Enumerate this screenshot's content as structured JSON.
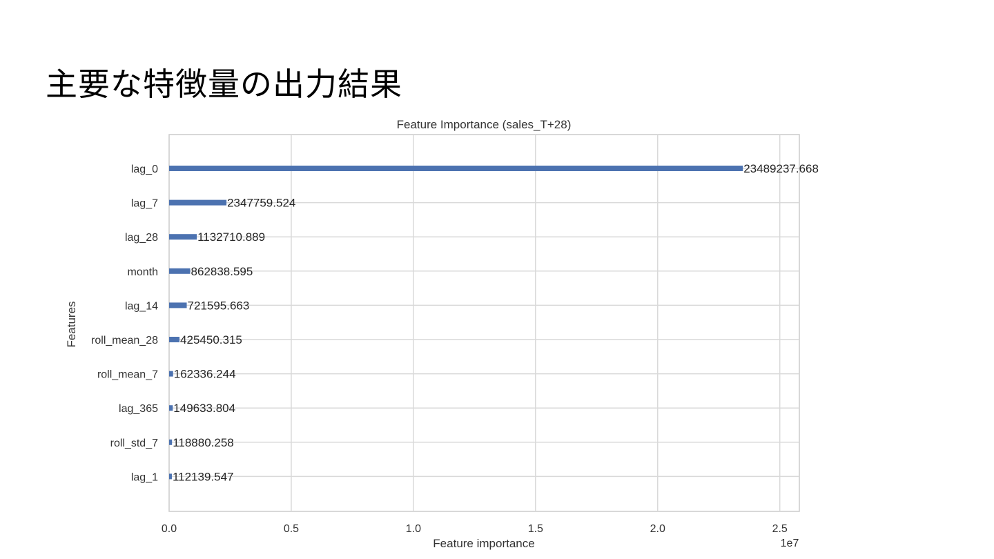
{
  "slide": {
    "title": "主要な特徴量の出力結果"
  },
  "chart_data": {
    "type": "bar",
    "orientation": "horizontal",
    "title": "Feature Importance (sales_T+28)",
    "xlabel": "Feature importance",
    "ylabel": "Features",
    "x_scale_note": "1e7",
    "xlim": [
      0,
      25800000
    ],
    "xticks": [
      0,
      5000000,
      10000000,
      15000000,
      20000000,
      25000000
    ],
    "xtick_labels": [
      "0.0",
      "0.5",
      "1.0",
      "1.5",
      "2.0",
      "2.5"
    ],
    "grid": true,
    "categories": [
      "lag_0",
      "lag_7",
      "lag_28",
      "month",
      "lag_14",
      "roll_mean_28",
      "roll_mean_7",
      "lag_365",
      "roll_std_7",
      "lag_1"
    ],
    "values": [
      23489237.668,
      2347759.524,
      1132710.889,
      862838.595,
      721595.663,
      425450.315,
      162336.244,
      149633.804,
      118880.258,
      112139.547
    ],
    "value_labels": [
      "23489237.668",
      "2347759.524",
      "1132710.889",
      "862838.595",
      "721595.663",
      "425450.315",
      "162336.244",
      "149633.804",
      "118880.258",
      "112139.547"
    ],
    "bar_color": "#4c72b0",
    "grid_color": "#d9d9d9"
  }
}
